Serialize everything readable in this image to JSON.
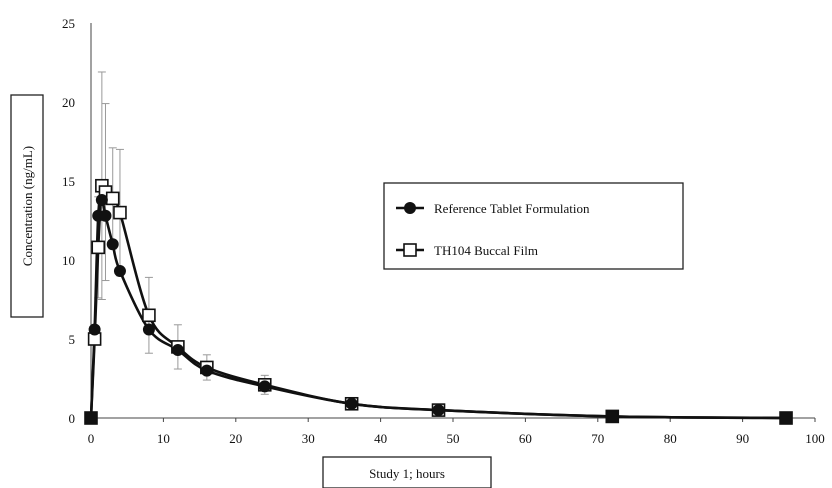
{
  "chart_data": {
    "type": "line",
    "xlabel": "Study 1; hours",
    "ylabel": "Concentration (ng/mL)",
    "xlim": [
      0,
      100
    ],
    "ylim": [
      0,
      25
    ],
    "xticks": [
      0,
      10,
      20,
      30,
      40,
      50,
      60,
      70,
      80,
      90,
      100
    ],
    "yticks": [
      0,
      5,
      10,
      15,
      20,
      25
    ],
    "grid": false,
    "legend_position": "right",
    "series": [
      {
        "name": "Reference Tablet Formulation",
        "marker": "filled-circle",
        "x": [
          0,
          0.5,
          1,
          1.5,
          2,
          3,
          4,
          8,
          12,
          16,
          24,
          36,
          48,
          72,
          96
        ],
        "y": [
          0,
          5.6,
          12.8,
          13.8,
          12.8,
          11.0,
          9.3,
          5.6,
          4.3,
          3.0,
          2.0,
          0.9,
          0.5,
          0.1,
          0.0
        ],
        "err": [
          0,
          0,
          0,
          0,
          0,
          0,
          0,
          0,
          0,
          0,
          0,
          0,
          0,
          0,
          0
        ]
      },
      {
        "name": "TH104 Buccal Film",
        "marker": "open-square",
        "x": [
          0,
          0.5,
          1,
          1.5,
          2,
          3,
          4,
          8,
          12,
          16,
          24,
          36,
          48,
          72,
          96
        ],
        "y": [
          0,
          5.0,
          10.8,
          14.7,
          14.3,
          13.9,
          13.0,
          6.5,
          4.5,
          3.2,
          2.1,
          0.9,
          0.5,
          0.1,
          0.0
        ],
        "err": [
          0,
          0,
          3.2,
          7.2,
          5.6,
          3.2,
          4.0,
          2.4,
          1.4,
          0.8,
          0.6,
          0.2,
          0.1,
          0.05,
          0
        ]
      }
    ]
  }
}
